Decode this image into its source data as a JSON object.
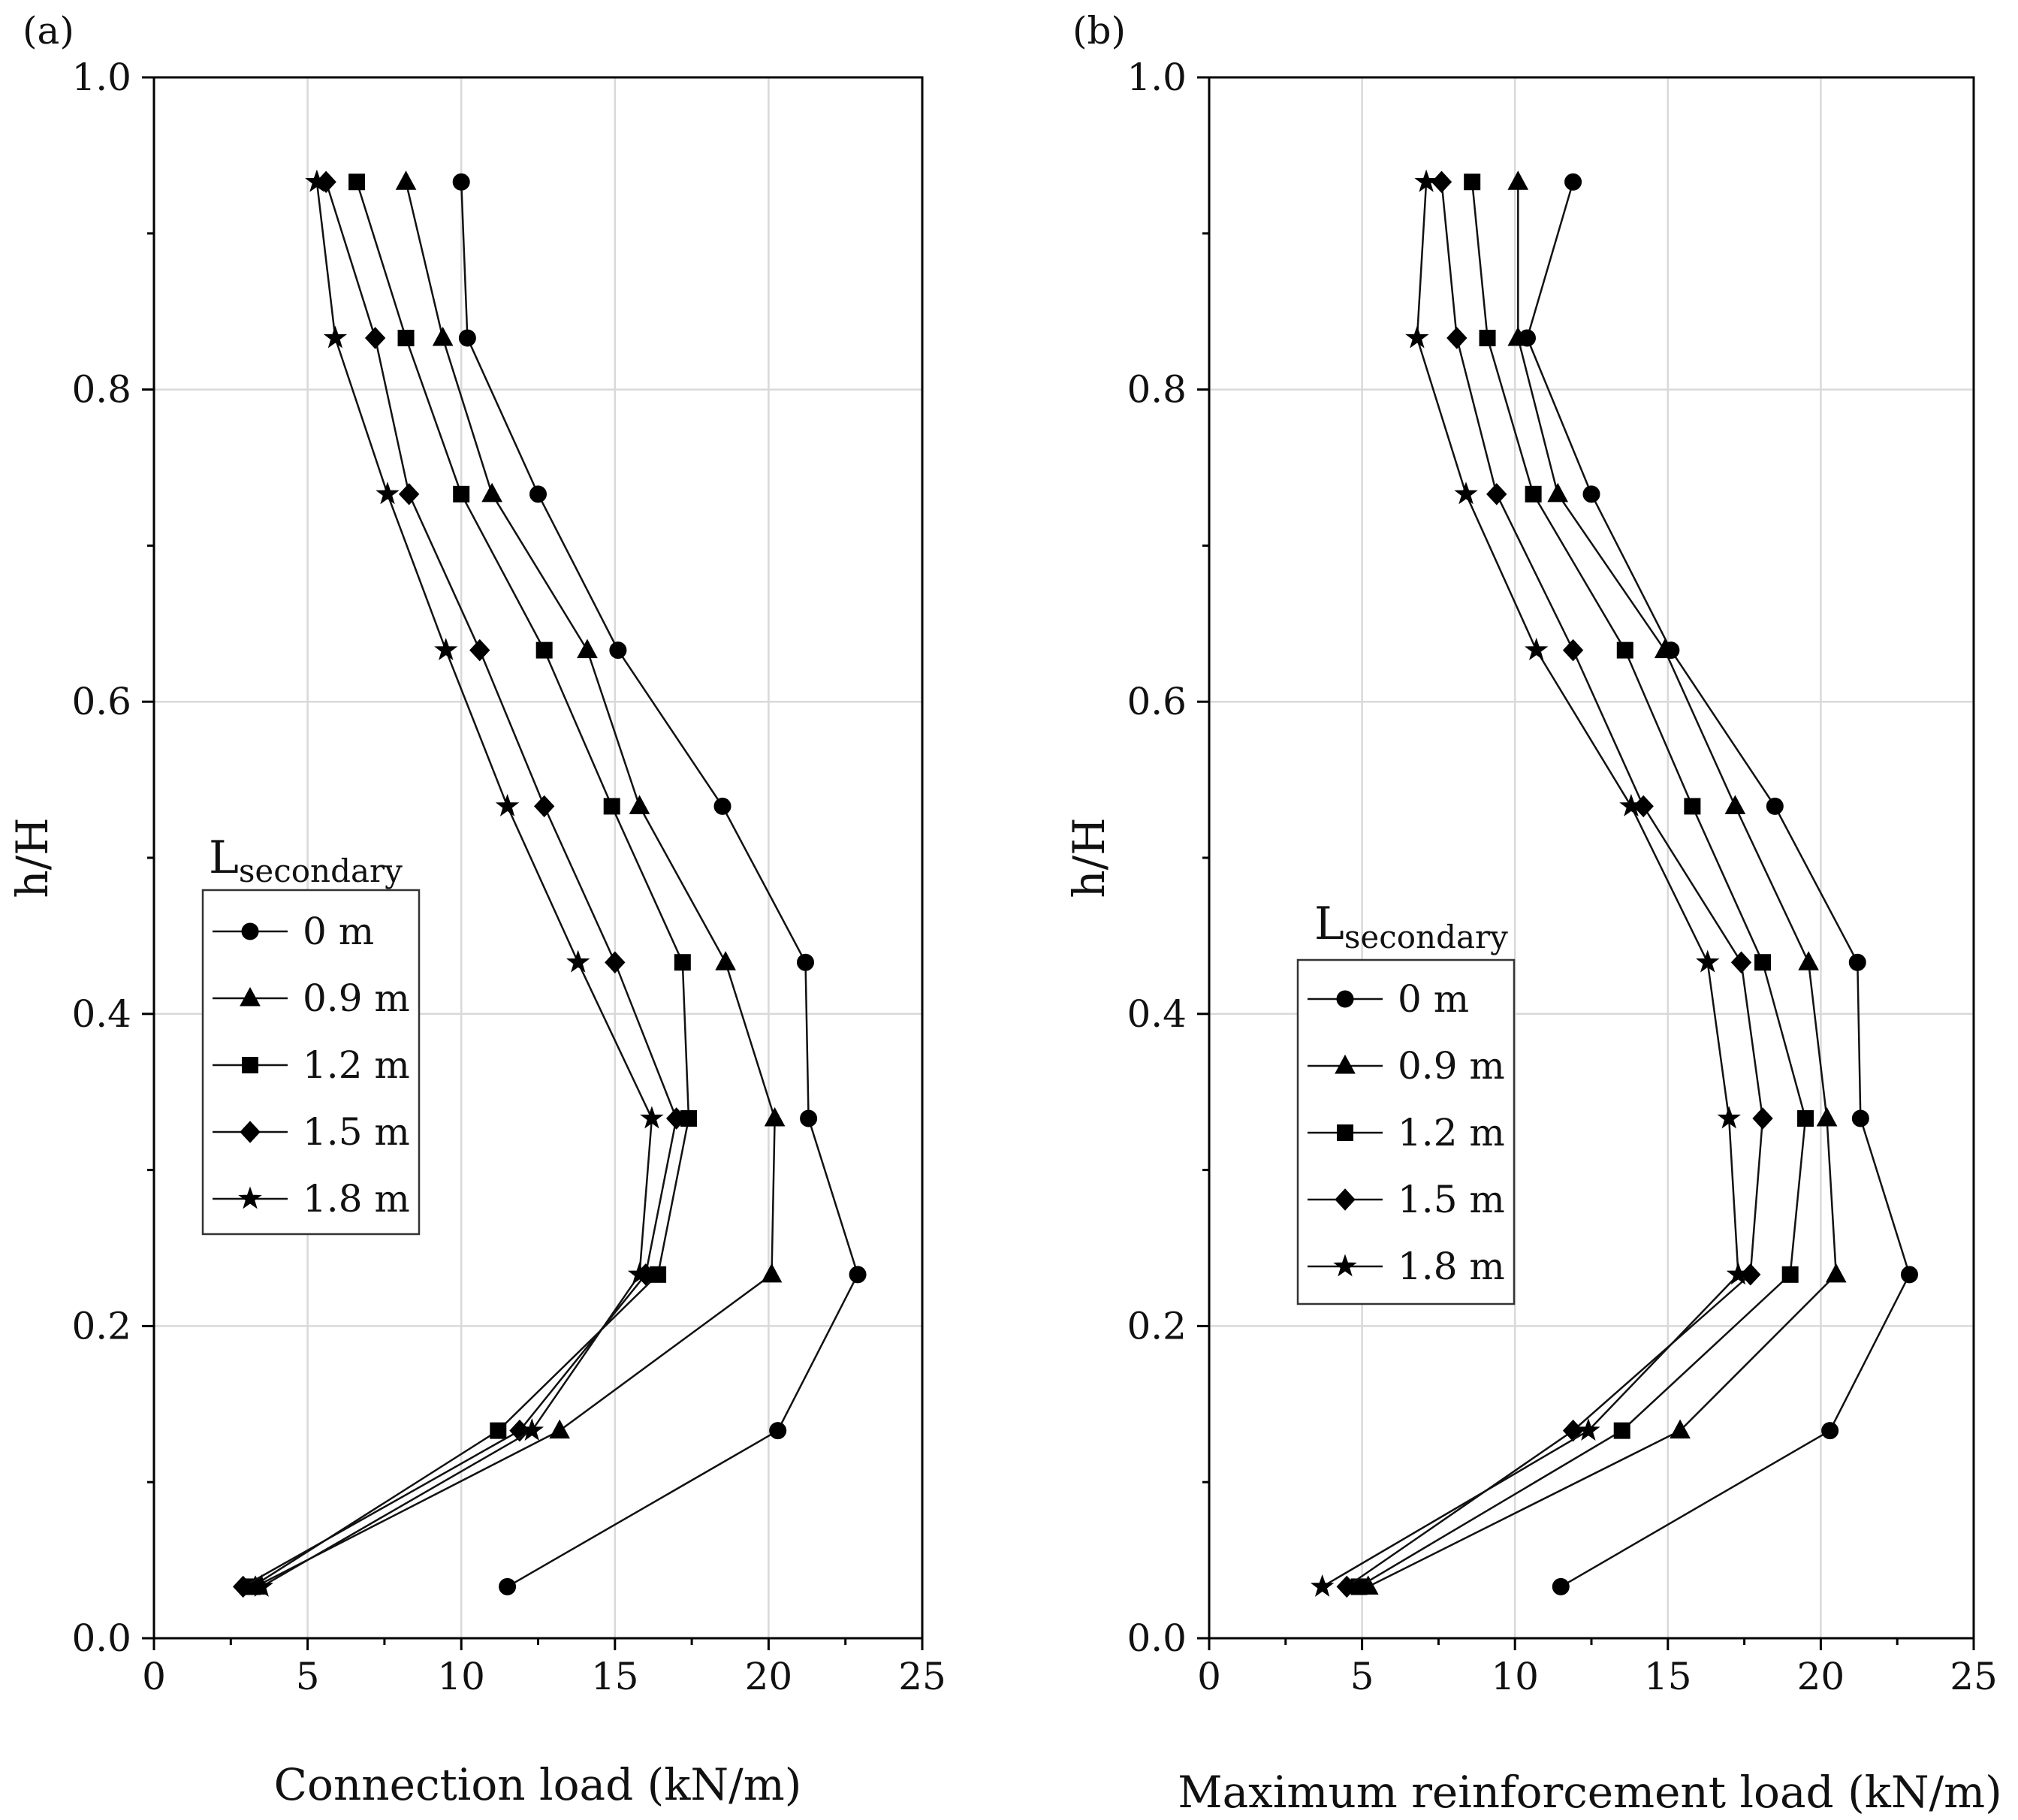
{
  "figure": {
    "panels": [
      {
        "label": "(a)",
        "xlabel": "Connection load (kN/m)",
        "ylabel": "h/H"
      },
      {
        "label": "(b)",
        "xlabel": "Maximum reinforcement load (kN/m)",
        "ylabel": "h/H"
      }
    ],
    "legend": {
      "title_main": "L",
      "title_sub": "secondary",
      "entries": [
        "0 m",
        "0.9 m",
        "1.2 m",
        "1.5 m",
        "1.8 m"
      ]
    }
  },
  "chart_data": [
    {
      "type": "line",
      "title": "(a)",
      "xlabel": "Connection load (kN/m)",
      "ylabel": "h/H",
      "xlim": [
        0,
        25
      ],
      "ylim": [
        0,
        1.0
      ],
      "xticks": [
        "0",
        "5",
        "10",
        "15",
        "20",
        "25"
      ],
      "yticks": [
        "0.0",
        "0.2",
        "0.4",
        "0.6",
        "0.8",
        "1.0"
      ],
      "grid": true,
      "legend_title": "Lsecondary",
      "y": [
        0.033,
        0.133,
        0.233,
        0.333,
        0.433,
        0.533,
        0.633,
        0.733,
        0.833,
        0.933
      ],
      "series": [
        {
          "name": "0 m",
          "marker": "circle",
          "values": [
            11.5,
            20.3,
            22.9,
            21.3,
            21.2,
            18.5,
            15.1,
            12.5,
            10.2,
            10.0
          ]
        },
        {
          "name": "0.9 m",
          "marker": "triangle",
          "values": [
            3.3,
            13.2,
            20.1,
            20.2,
            18.6,
            15.8,
            14.1,
            11.0,
            9.4,
            8.2
          ]
        },
        {
          "name": "1.2 m",
          "marker": "square",
          "values": [
            3.2,
            11.2,
            16.4,
            17.4,
            17.2,
            14.9,
            12.7,
            10.0,
            8.2,
            6.6
          ]
        },
        {
          "name": "1.5 m",
          "marker": "diamond",
          "values": [
            2.9,
            11.9,
            16.0,
            17.0,
            15.0,
            12.7,
            10.6,
            8.3,
            7.2,
            5.6
          ]
        },
        {
          "name": "1.8 m",
          "marker": "star",
          "values": [
            3.5,
            12.3,
            15.8,
            16.2,
            13.8,
            11.5,
            9.5,
            7.6,
            5.9,
            5.3
          ]
        }
      ]
    },
    {
      "type": "line",
      "title": "(b)",
      "xlabel": "Maximum reinforcement load (kN/m)",
      "ylabel": "h/H",
      "xlim": [
        0,
        25
      ],
      "ylim": [
        0,
        1.0
      ],
      "xticks": [
        "0",
        "5",
        "10",
        "15",
        "20",
        "25"
      ],
      "yticks": [
        "0.0",
        "0.2",
        "0.4",
        "0.6",
        "0.8",
        "1.0"
      ],
      "grid": true,
      "legend_title": "Lsecondary",
      "y": [
        0.033,
        0.133,
        0.233,
        0.333,
        0.433,
        0.533,
        0.633,
        0.733,
        0.833,
        0.933
      ],
      "series": [
        {
          "name": "0 m",
          "marker": "circle",
          "values": [
            11.5,
            20.3,
            22.9,
            21.3,
            21.2,
            18.5,
            15.1,
            12.5,
            10.4,
            11.9
          ]
        },
        {
          "name": "0.9 m",
          "marker": "triangle",
          "values": [
            5.2,
            15.4,
            20.5,
            20.2,
            19.6,
            17.2,
            14.9,
            11.4,
            10.1,
            10.1
          ]
        },
        {
          "name": "1.2 m",
          "marker": "square",
          "values": [
            4.9,
            13.5,
            19.0,
            19.5,
            18.1,
            15.8,
            13.6,
            10.6,
            9.1,
            8.6
          ]
        },
        {
          "name": "1.5 m",
          "marker": "diamond",
          "values": [
            4.5,
            11.9,
            17.7,
            18.1,
            17.4,
            14.2,
            11.9,
            9.4,
            8.1,
            7.6
          ]
        },
        {
          "name": "1.8 m",
          "marker": "star",
          "values": [
            3.7,
            12.4,
            17.3,
            17.0,
            16.3,
            13.8,
            10.7,
            8.4,
            6.8,
            7.1
          ]
        }
      ]
    }
  ]
}
